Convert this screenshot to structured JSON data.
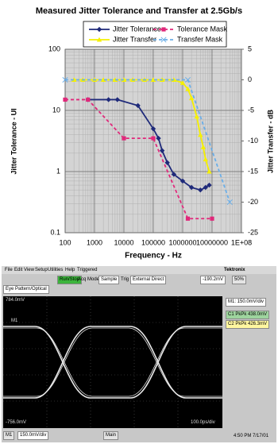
{
  "chart_data": {
    "type": "line",
    "title": "Measured Jitter Tolerance and Transfer at 2.5Gb/s",
    "xlabel": "Frequency - Hz",
    "ylabel": "Jitter Tolerance - UI",
    "y2label": "Jitter Transfer - dB",
    "xscale": "log",
    "yscale": "log",
    "grid": true,
    "legend": "top",
    "xlim": [
      100,
      100000000
    ],
    "xticks": [
      100,
      1000,
      10000,
      100000,
      1000000,
      10000000,
      {
        "value": 100000000,
        "label": "1E+08"
      }
    ],
    "ylim": [
      0.1,
      100
    ],
    "yticks": [
      0.1,
      1,
      10,
      100
    ],
    "y2lim": [
      -25,
      5
    ],
    "y2ticks": [
      5,
      0,
      -5,
      -10,
      -15,
      -20,
      -25
    ],
    "series": [
      {
        "name": "Jitter Tolerance",
        "color": "#1f2a7a",
        "marker": "diamond",
        "dash": "solid",
        "axis": "y",
        "x": [
          600,
          3000,
          6000,
          30000,
          100000,
          150000,
          200000,
          300000,
          500000,
          1000000,
          2000000,
          4000000,
          6000000,
          8000000
        ],
        "values": [
          15,
          15,
          15,
          12,
          5,
          3.5,
          2.2,
          1.4,
          0.9,
          0.7,
          0.55,
          0.5,
          0.55,
          0.6
        ]
      },
      {
        "name": "Tolerance Mask",
        "color": "#e0287a",
        "marker": "square",
        "dash": "dashed",
        "axis": "y",
        "x": [
          100,
          600,
          10000,
          100000,
          1500000,
          10000000
        ],
        "values": [
          15,
          15,
          3.5,
          3.5,
          0.17,
          0.17
        ]
      },
      {
        "name": "Jitter Transfer",
        "color": "#f5f000",
        "marker": "triangle",
        "dash": "solid",
        "axis": "y2",
        "x": [
          200,
          400,
          1000,
          2000,
          5000,
          10000,
          20000,
          50000,
          100000,
          200000,
          500000,
          1000000,
          1500000,
          2000000,
          3000000,
          4000000,
          5000000,
          6000000,
          8000000
        ],
        "values": [
          0,
          0,
          0,
          0,
          0,
          0,
          0,
          0,
          0,
          0,
          0,
          -0.5,
          -1.5,
          -3,
          -6,
          -9,
          -11,
          -13,
          -15
        ]
      },
      {
        "name": "Transfer Mask",
        "color": "#6aaee8",
        "marker": "x",
        "dash": "dashed",
        "axis": "y2",
        "x": [
          100,
          1500000,
          40000000
        ],
        "values": [
          0,
          0,
          -20
        ]
      }
    ]
  },
  "screenshot": {
    "menu": [
      "File",
      "Edit",
      "View",
      "Setup",
      "Utilities",
      "Help"
    ],
    "status": "Triggered",
    "brand": "Tektronix",
    "toolbar": [
      "Run/Stop",
      "Acq Mode",
      "Sample",
      "Trig",
      "External Direct",
      "-190.2mV",
      "50%"
    ],
    "mode": "Eye Pattern/Optical",
    "scale_top": "784.0mV",
    "marker": "M1",
    "scale_bottom": "-756.0mV",
    "timebase": "100.0ps/div",
    "panel": [
      "M1: 150.0mV/div",
      "C1 PkPk 438.0mV",
      "C2 PkPk 426.3mV"
    ],
    "footer": [
      "M1",
      "150.0mV/div",
      "Main",
      "4:50 PM 7/17/01"
    ]
  }
}
